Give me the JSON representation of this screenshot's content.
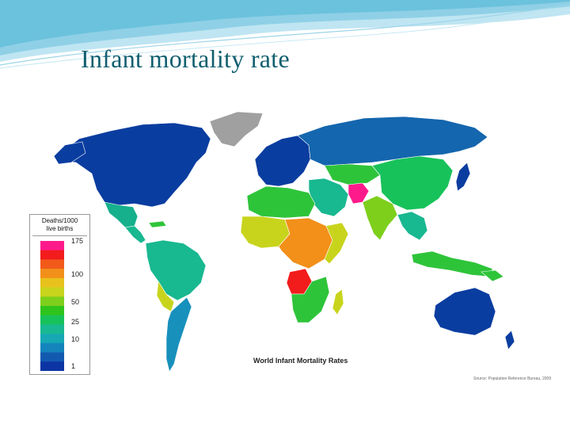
{
  "slide": {
    "title": "Infant mortality rate"
  },
  "map": {
    "caption": "World Infant Mortality Rates",
    "source": "Source: Population Reference Bureau, 2009",
    "legend": {
      "title_line1": "Deaths/1000",
      "title_line2": "live births",
      "ticks": [
        "175",
        "100",
        "50",
        "25",
        "10",
        "1"
      ],
      "colors": [
        "#ff1a8c",
        "#f21c1c",
        "#f25a1a",
        "#f2901a",
        "#e8c21c",
        "#c8d41c",
        "#7ecf1c",
        "#2ec41c",
        "#18c25a",
        "#18b890",
        "#16a8b4",
        "#1484bc",
        "#125ab0",
        "#0c34a4"
      ]
    },
    "colors": {
      "very_low": "#0a3da0",
      "low": "#1466ae",
      "low_mid": "#1890bc",
      "mid": "#16b08c",
      "mid_high": "#2ec43a",
      "high": "#c8d41c",
      "very_high": "#f2901a",
      "extreme": "#f21c1c",
      "no_data": "#a0a0a0"
    }
  }
}
